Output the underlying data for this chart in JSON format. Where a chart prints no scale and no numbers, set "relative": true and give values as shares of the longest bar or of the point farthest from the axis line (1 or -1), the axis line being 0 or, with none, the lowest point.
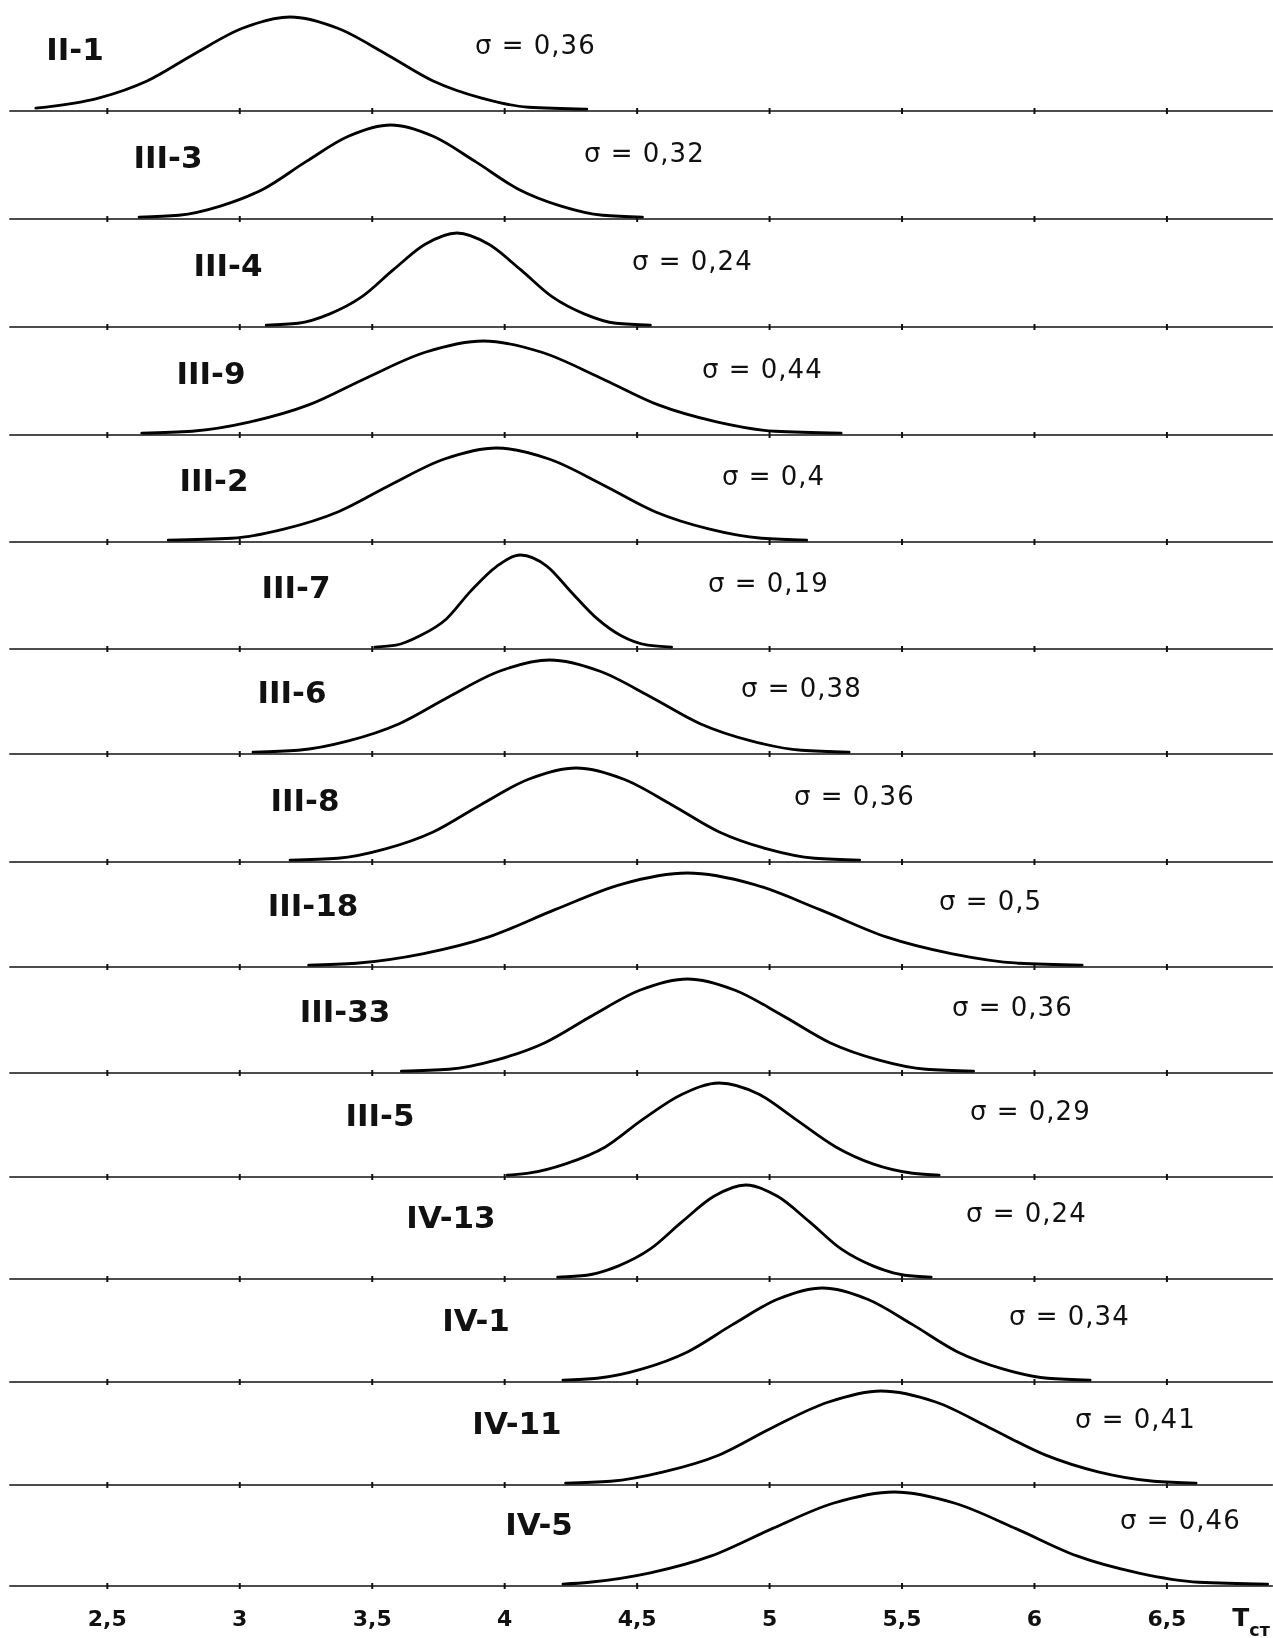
{
  "chart_data": [
    {
      "type": "line",
      "relative": true,
      "xlim": [
        2.13,
        6.9
      ],
      "xticks": [
        2.5,
        3,
        3.5,
        4,
        4.5,
        5,
        5.5,
        6,
        6.5
      ],
      "tick_labels": false,
      "annotations": [
        "σ = 0,36"
      ],
      "series": [
        {
          "name": "II-1",
          "color": "#000000",
          "x": [
            2.23,
            2.47,
            2.65,
            2.83,
            3.01,
            3.19,
            3.37,
            3.55,
            3.73,
            3.91,
            4.09,
            4.31
          ],
          "values": [
            0.03,
            0.14,
            0.32,
            0.61,
            0.88,
            1,
            0.88,
            0.61,
            0.32,
            0.14,
            0.04,
            0.02
          ]
        }
      ]
    },
    {
      "type": "line",
      "relative": true,
      "xlim": [
        2.13,
        6.9
      ],
      "xticks": [
        2.5,
        3,
        3.5,
        4,
        4.5,
        5,
        5.5,
        6,
        6.5
      ],
      "tick_labels": false,
      "annotations": [
        "σ = 0,32"
      ],
      "series": [
        {
          "name": "III-3",
          "color": "#000000",
          "x": [
            2.62,
            2.77,
            2.93,
            3.09,
            3.25,
            3.41,
            3.57,
            3.73,
            3.89,
            4.05,
            4.21,
            4.37,
            4.52
          ],
          "values": [
            0.02,
            0.04,
            0.14,
            0.32,
            0.61,
            0.88,
            1,
            0.88,
            0.61,
            0.32,
            0.14,
            0.04,
            0.02
          ]
        }
      ]
    },
    {
      "type": "line",
      "relative": true,
      "xlim": [
        2.13,
        6.9
      ],
      "xticks": [
        2.5,
        3,
        3.5,
        4,
        4.5,
        5,
        5.5,
        6,
        6.5
      ],
      "tick_labels": false,
      "annotations": [
        "σ = 0,24"
      ],
      "series": [
        {
          "name": "III-4",
          "color": "#000000",
          "x": [
            3.1,
            3.22,
            3.34,
            3.46,
            3.58,
            3.7,
            3.82,
            3.94,
            4.06,
            4.18,
            4.3,
            4.42,
            4.55
          ],
          "values": [
            0.02,
            0.04,
            0.14,
            0.32,
            0.61,
            0.88,
            1,
            0.88,
            0.61,
            0.32,
            0.14,
            0.04,
            0.02
          ]
        }
      ]
    },
    {
      "type": "line",
      "relative": true,
      "xlim": [
        2.13,
        6.9
      ],
      "xticks": [
        2.5,
        3,
        3.5,
        4,
        4.5,
        5,
        5.5,
        6,
        6.5
      ],
      "tick_labels": false,
      "annotations": [
        "σ = 0,44"
      ],
      "series": [
        {
          "name": "III-9",
          "color": "#000000",
          "x": [
            2.63,
            2.82,
            3.04,
            3.26,
            3.48,
            3.7,
            3.92,
            4.14,
            4.36,
            4.58,
            4.8,
            5.02,
            5.27
          ],
          "values": [
            0.02,
            0.04,
            0.14,
            0.32,
            0.61,
            0.88,
            1,
            0.88,
            0.61,
            0.32,
            0.14,
            0.04,
            0.02
          ]
        }
      ]
    },
    {
      "type": "line",
      "relative": true,
      "xlim": [
        2.13,
        6.9
      ],
      "xticks": [
        2.5,
        3,
        3.5,
        4,
        4.5,
        5,
        5.5,
        6,
        6.5
      ],
      "tick_labels": false,
      "annotations": [
        "σ = 0,4"
      ],
      "series": [
        {
          "name": "III-2",
          "color": "#000000",
          "x": [
            2.73,
            2.97,
            3.17,
            3.37,
            3.57,
            3.77,
            3.97,
            4.17,
            4.37,
            4.57,
            4.77,
            4.97,
            5.14
          ],
          "values": [
            0.02,
            0.04,
            0.14,
            0.32,
            0.61,
            0.88,
            1,
            0.88,
            0.61,
            0.32,
            0.14,
            0.04,
            0.02
          ]
        }
      ]
    },
    {
      "type": "line",
      "relative": true,
      "xlim": [
        2.13,
        6.9
      ],
      "xticks": [
        2.5,
        3,
        3.5,
        4,
        4.5,
        5,
        5.5,
        6,
        6.5
      ],
      "tick_labels": false,
      "annotations": [
        "σ = 0,19"
      ],
      "series": [
        {
          "name": "III-7",
          "color": "#000000",
          "x": [
            3.51,
            3.59,
            3.68,
            3.78,
            3.87,
            3.97,
            4.06,
            4.16,
            4.25,
            4.35,
            4.44,
            4.54,
            4.63
          ],
          "values": [
            0.02,
            0.04,
            0.14,
            0.32,
            0.61,
            0.88,
            1,
            0.88,
            0.61,
            0.32,
            0.14,
            0.04,
            0.02
          ]
        }
      ]
    },
    {
      "type": "line",
      "relative": true,
      "xlim": [
        2.13,
        6.9
      ],
      "xticks": [
        2.5,
        3,
        3.5,
        4,
        4.5,
        5,
        5.5,
        6,
        6.5
      ],
      "tick_labels": false,
      "annotations": [
        "σ = 0,38"
      ],
      "series": [
        {
          "name": "III-6",
          "color": "#000000",
          "x": [
            3.05,
            3.22,
            3.41,
            3.6,
            3.79,
            3.98,
            4.17,
            4.36,
            4.55,
            4.74,
            4.93,
            5.12,
            5.3
          ],
          "values": [
            0.02,
            0.04,
            0.14,
            0.32,
            0.61,
            0.88,
            1,
            0.88,
            0.61,
            0.32,
            0.14,
            0.04,
            0.02
          ]
        }
      ]
    },
    {
      "type": "line",
      "relative": true,
      "xlim": [
        2.13,
        6.9
      ],
      "xticks": [
        2.5,
        3,
        3.5,
        4,
        4.5,
        5,
        5.5,
        6,
        6.5
      ],
      "tick_labels": false,
      "annotations": [
        "σ = 0,36"
      ],
      "series": [
        {
          "name": "III-8",
          "color": "#000000",
          "x": [
            3.19,
            3.37,
            3.55,
            3.73,
            3.91,
            4.09,
            4.27,
            4.45,
            4.63,
            4.81,
            4.99,
            5.17,
            5.34
          ],
          "values": [
            0.02,
            0.04,
            0.14,
            0.32,
            0.61,
            0.88,
            1,
            0.88,
            0.61,
            0.32,
            0.14,
            0.04,
            0.02
          ]
        }
      ]
    },
    {
      "type": "line",
      "relative": true,
      "xlim": [
        2.13,
        6.9
      ],
      "xticks": [
        2.5,
        3,
        3.5,
        4,
        4.5,
        5,
        5.5,
        6,
        6.5
      ],
      "tick_labels": false,
      "annotations": [
        "σ = 0,5"
      ],
      "series": [
        {
          "name": "III-18",
          "color": "#000000",
          "x": [
            3.26,
            3.44,
            3.69,
            3.94,
            4.19,
            4.44,
            4.69,
            4.94,
            5.19,
            5.44,
            5.69,
            5.94,
            6.18
          ],
          "values": [
            0.02,
            0.04,
            0.14,
            0.32,
            0.61,
            0.88,
            1,
            0.88,
            0.61,
            0.32,
            0.14,
            0.04,
            0.02
          ]
        }
      ]
    },
    {
      "type": "line",
      "relative": true,
      "xlim": [
        2.13,
        6.9
      ],
      "xticks": [
        2.5,
        3,
        3.5,
        4,
        4.5,
        5,
        5.5,
        6,
        6.5
      ],
      "tick_labels": false,
      "annotations": [
        "σ = 0,36"
      ],
      "series": [
        {
          "name": "III-33",
          "color": "#000000",
          "x": [
            3.61,
            3.79,
            3.97,
            4.15,
            4.33,
            4.51,
            4.69,
            4.87,
            5.05,
            5.23,
            5.41,
            5.59,
            5.77
          ],
          "values": [
            0.02,
            0.04,
            0.14,
            0.32,
            0.61,
            0.88,
            1,
            0.88,
            0.61,
            0.32,
            0.14,
            0.04,
            0.02
          ]
        }
      ]
    },
    {
      "type": "line",
      "relative": true,
      "xlim": [
        2.13,
        6.9
      ],
      "xticks": [
        2.5,
        3,
        3.5,
        4,
        4.5,
        5,
        5.5,
        6,
        6.5
      ],
      "tick_labels": false,
      "annotations": [
        "σ = 0,29"
      ],
      "series": [
        {
          "name": "III-5",
          "color": "#000000",
          "x": [
            4.01,
            4.09,
            4.23,
            4.38,
            4.52,
            4.67,
            4.81,
            4.96,
            5.1,
            5.25,
            5.39,
            5.54,
            5.64
          ],
          "values": [
            0.02,
            0.04,
            0.14,
            0.32,
            0.61,
            0.88,
            1,
            0.88,
            0.61,
            0.32,
            0.14,
            0.04,
            0.02
          ]
        }
      ]
    },
    {
      "type": "line",
      "relative": true,
      "xlim": [
        2.13,
        6.9
      ],
      "xticks": [
        2.5,
        3,
        3.5,
        4,
        4.5,
        5,
        5.5,
        6,
        6.5
      ],
      "tick_labels": false,
      "annotations": [
        "σ = 0,24"
      ],
      "series": [
        {
          "name": "IV-13",
          "color": "#000000",
          "x": [
            4.2,
            4.31,
            4.43,
            4.55,
            4.67,
            4.79,
            4.91,
            5.03,
            5.15,
            5.27,
            5.39,
            5.51,
            5.61
          ],
          "values": [
            0.02,
            0.04,
            0.14,
            0.32,
            0.61,
            0.88,
            1,
            0.88,
            0.61,
            0.32,
            0.14,
            0.04,
            0.02
          ]
        }
      ]
    },
    {
      "type": "line",
      "relative": true,
      "xlim": [
        2.13,
        6.9
      ],
      "xticks": [
        2.5,
        3,
        3.5,
        4,
        4.5,
        5,
        5.5,
        6,
        6.5
      ],
      "tick_labels": false,
      "annotations": [
        "σ = 0,34"
      ],
      "series": [
        {
          "name": "IV-1",
          "color": "#000000",
          "x": [
            4.22,
            4.35,
            4.52,
            4.69,
            4.86,
            5.03,
            5.2,
            5.37,
            5.54,
            5.71,
            5.88,
            6.05,
            6.21
          ],
          "values": [
            0.02,
            0.04,
            0.14,
            0.32,
            0.61,
            0.88,
            1,
            0.88,
            0.61,
            0.32,
            0.14,
            0.04,
            0.02
          ]
        }
      ]
    },
    {
      "type": "line",
      "relative": true,
      "xlim": [
        2.13,
        6.9
      ],
      "xticks": [
        2.5,
        3,
        3.5,
        4,
        4.5,
        5,
        5.5,
        6,
        6.5
      ],
      "tick_labels": false,
      "annotations": [
        "σ = 0,41"
      ],
      "series": [
        {
          "name": "IV-11",
          "color": "#000000",
          "x": [
            4.23,
            4.4,
            4.6,
            4.81,
            5.01,
            5.22,
            5.42,
            5.63,
            5.83,
            6.04,
            6.24,
            6.45,
            6.61
          ],
          "values": [
            0.02,
            0.04,
            0.14,
            0.32,
            0.61,
            0.88,
            1,
            0.88,
            0.61,
            0.32,
            0.14,
            0.04,
            0.02
          ]
        }
      ]
    },
    {
      "type": "line",
      "relative": true,
      "xlim": [
        2.13,
        6.9
      ],
      "xticks": [
        {
          "value": 2.5,
          "label": "2,5"
        },
        3,
        {
          "value": 3.5,
          "label": "3,5"
        },
        4,
        {
          "value": 4.5,
          "label": "4,5"
        },
        5,
        {
          "value": 5.5,
          "label": "5,5"
        },
        6,
        {
          "value": 6.5,
          "label": "6,5"
        }
      ],
      "tick_labels": "x",
      "xlabel": "T$_{ст}$",
      "annotations": [
        "σ = 0,46"
      ],
      "series": [
        {
          "name": "IV-5",
          "color": "#000000",
          "x": [
            4.22,
            4.32,
            4.55,
            4.78,
            5.01,
            5.24,
            5.47,
            5.7,
            5.93,
            6.16,
            6.39,
            6.62,
            6.88
          ],
          "values": [
            0.02,
            0.04,
            0.14,
            0.32,
            0.61,
            0.88,
            1,
            0.88,
            0.61,
            0.32,
            0.14,
            0.04,
            0.02
          ]
        }
      ]
    }
  ]
}
